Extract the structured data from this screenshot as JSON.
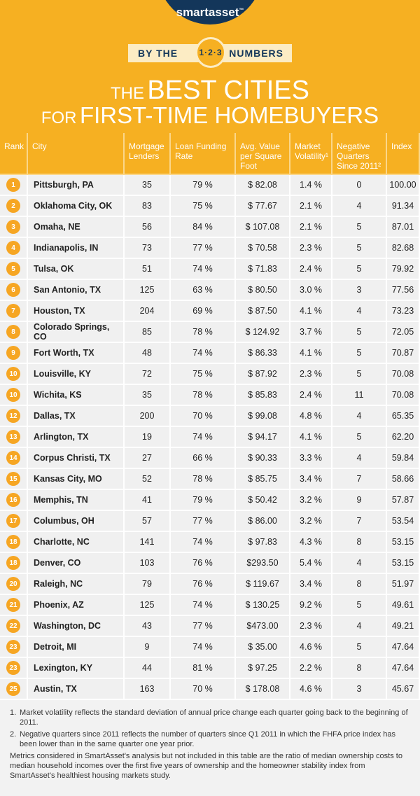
{
  "header": {
    "logo": "smartasset",
    "logo_mark": "™",
    "ribbon_left": "BY THE",
    "ribbon_badge": "1·2·3",
    "ribbon_right": "NUMBERS",
    "title_small": "THE",
    "title_big": "BEST CITIES",
    "subtitle_small": "FOR",
    "subtitle_big": "FIRST-TIME HOMEBUYERS"
  },
  "table": {
    "columns": [
      "Rank",
      "City",
      "Mortgage Lenders",
      "Loan Funding Rate",
      "Avg. Value per Square Foot",
      "Market Volatility¹",
      "Negative Quarters Since 2011²",
      "Index"
    ],
    "rows": [
      [
        "1",
        "Pittsburgh, PA",
        "35",
        "79 %",
        "$ 82.08",
        "1.4 %",
        "0",
        "100.00"
      ],
      [
        "2",
        "Oklahoma City, OK",
        "83",
        "75 %",
        "$ 77.67",
        "2.1 %",
        "4",
        "91.34"
      ],
      [
        "3",
        "Omaha, NE",
        "56",
        "84 %",
        "$ 107.08",
        "2.1 %",
        "5",
        "87.01"
      ],
      [
        "4",
        "Indianapolis, IN",
        "73",
        "77 %",
        "$ 70.58",
        "2.3 %",
        "5",
        "82.68"
      ],
      [
        "5",
        "Tulsa, OK",
        "51",
        "74 %",
        "$ 71.83",
        "2.4 %",
        "5",
        "79.92"
      ],
      [
        "6",
        "San Antonio, TX",
        "125",
        "63 %",
        "$ 80.50",
        "3.0 %",
        "3",
        "77.56"
      ],
      [
        "7",
        "Houston, TX",
        "204",
        "69 %",
        "$ 87.50",
        "4.1 %",
        "4",
        "73.23"
      ],
      [
        "8",
        "Colorado Springs, CO",
        "85",
        "78 %",
        "$ 124.92",
        "3.7 %",
        "5",
        "72.05"
      ],
      [
        "9",
        "Fort Worth, TX",
        "48",
        "74 %",
        "$ 86.33",
        "4.1 %",
        "5",
        "70.87"
      ],
      [
        "10",
        "Louisville, KY",
        "72",
        "75 %",
        "$ 87.92",
        "2.3 %",
        "5",
        "70.08"
      ],
      [
        "10",
        "Wichita, KS",
        "35",
        "78 %",
        "$ 85.83",
        "2.4 %",
        "11",
        "70.08"
      ],
      [
        "12",
        "Dallas, TX",
        "200",
        "70 %",
        "$ 99.08",
        "4.8 %",
        "4",
        "65.35"
      ],
      [
        "13",
        "Arlington, TX",
        "19",
        "74 %",
        "$ 94.17",
        "4.1 %",
        "5",
        "62.20"
      ],
      [
        "14",
        "Corpus Christi, TX",
        "27",
        "66 %",
        "$ 90.33",
        "3.3 %",
        "4",
        "59.84"
      ],
      [
        "15",
        "Kansas City, MO",
        "52",
        "78 %",
        "$ 85.75",
        "3.4 %",
        "7",
        "58.66"
      ],
      [
        "16",
        "Memphis, TN",
        "41",
        "79 %",
        "$ 50.42",
        "3.2 %",
        "9",
        "57.87"
      ],
      [
        "17",
        "Columbus, OH",
        "57",
        "77 %",
        "$ 86.00",
        "3.2 %",
        "7",
        "53.54"
      ],
      [
        "18",
        "Charlotte, NC",
        "141",
        "74 %",
        "$ 97.83",
        "4.3 %",
        "8",
        "53.15"
      ],
      [
        "18",
        "Denver, CO",
        "103",
        "76 %",
        "$293.50",
        "5.4 %",
        "4",
        "53.15"
      ],
      [
        "20",
        "Raleigh, NC",
        "79",
        "76 %",
        "$ 119.67",
        "3.4 %",
        "8",
        "51.97"
      ],
      [
        "21",
        "Phoenix, AZ",
        "125",
        "74 %",
        "$ 130.25",
        "9.2 %",
        "5",
        "49.61"
      ],
      [
        "22",
        "Washington, DC",
        "43",
        "77 %",
        "$473.00",
        "2.3 %",
        "4",
        "49.21"
      ],
      [
        "23",
        "Detroit, MI",
        "9",
        "74 %",
        "$ 35.00",
        "4.6 %",
        "5",
        "47.64"
      ],
      [
        "23",
        "Lexington, KY",
        "44",
        "81 %",
        "$ 97.25",
        "2.2 %",
        "8",
        "47.64"
      ],
      [
        "25",
        "Austin, TX",
        "163",
        "70 %",
        "$ 178.08",
        "4.6 %",
        "3",
        "45.67"
      ]
    ]
  },
  "footnotes": [
    {
      "marker": "1.",
      "text": "Market volatility reflects the standard deviation of annual price change each quarter going back to the beginning of 2011."
    },
    {
      "marker": "2.",
      "text": "Negative quarters since 2011 reflects the number of quarters since Q1 2011 in which the FHFA price index has been lower than in the same quarter one year prior."
    }
  ],
  "note": "Metrics considered in SmartAsset's analysis but not included in this table are the ratio of median ownership costs to median household incomes over the first five years of ownership and the homeowner stability index from SmartAsset's healthiest housing markets study."
}
